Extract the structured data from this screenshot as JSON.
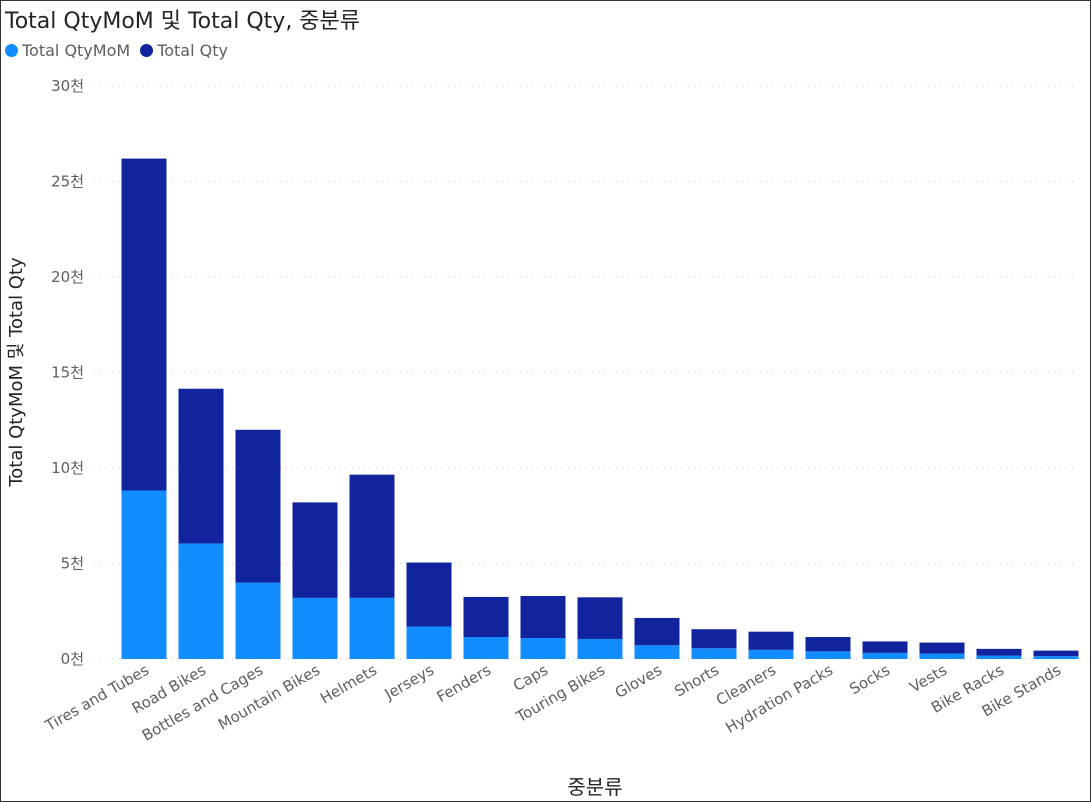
{
  "title": "Total QtyMoM 및 Total Qty, 중분류",
  "legend": [
    {
      "label": "Total QtyMoM",
      "color": "#118dff"
    },
    {
      "label": "Total Qty",
      "color": "#12239e"
    }
  ],
  "chart_data": {
    "type": "bar",
    "stacked": true,
    "title": "Total QtyMoM 및 Total Qty, 중분류",
    "xlabel": "중분류",
    "ylabel": "Total QtyMoM 및 Total Qty",
    "ylim": [
      0,
      30000
    ],
    "yticks": [
      0,
      5000,
      10000,
      15000,
      20000,
      25000,
      30000
    ],
    "ytick_labels": [
      "0천",
      "5천",
      "10천",
      "15천",
      "20천",
      "25천",
      "30천"
    ],
    "grid": true,
    "legend_position": "top-left",
    "categories": [
      "Tires and Tubes",
      "Road Bikes",
      "Bottles and Cages",
      "Mountain Bikes",
      "Helmets",
      "Jerseys",
      "Fenders",
      "Caps",
      "Touring Bikes",
      "Gloves",
      "Shorts",
      "Cleaners",
      "Hydration Packs",
      "Socks",
      "Vests",
      "Bike Racks",
      "Bike Stands"
    ],
    "series": [
      {
        "name": "Total QtyMoM",
        "color": "#118dff",
        "values": [
          8820,
          6050,
          4000,
          3200,
          3200,
          1700,
          1150,
          1100,
          1050,
          720,
          560,
          480,
          400,
          320,
          280,
          180,
          150
        ]
      },
      {
        "name": "Total Qty",
        "color": "#12239e",
        "values": [
          17380,
          8100,
          8000,
          5000,
          6450,
          3350,
          2100,
          2200,
          2180,
          1430,
          1000,
          950,
          750,
          600,
          580,
          350,
          290
        ]
      }
    ]
  }
}
